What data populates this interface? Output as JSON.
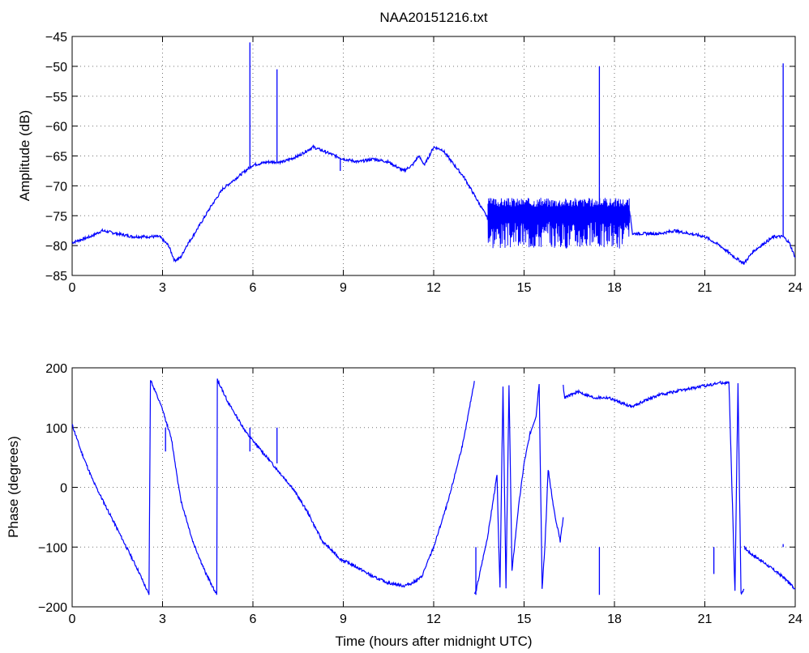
{
  "title": "NAA20151216.txt",
  "colors": {
    "series": "#0000ff",
    "axes": "#000000",
    "background": "#ffffff"
  },
  "chart_data": [
    {
      "type": "line",
      "ylabel": "Amplitude (dB)",
      "xlabel": "",
      "xlim": [
        0,
        24
      ],
      "ylim": [
        -85,
        -45
      ],
      "xticks": [
        "0",
        "3",
        "6",
        "9",
        "12",
        "15",
        "18",
        "21",
        "24"
      ],
      "yticks": [
        "-85",
        "-80",
        "-75",
        "-70",
        "-65",
        "-60",
        "-55",
        "-50",
        "-45"
      ],
      "grid": true,
      "x": [
        0,
        0.3,
        0.6,
        1.0,
        1.5,
        2.0,
        2.5,
        2.9,
        3.2,
        3.4,
        3.6,
        3.8,
        4.0,
        4.3,
        4.6,
        5.0,
        5.5,
        6.0,
        6.5,
        7.0,
        7.5,
        8.0,
        8.5,
        9.0,
        9.5,
        10.0,
        10.5,
        11.0,
        11.3,
        11.5,
        11.7,
        12.0,
        12.3,
        12.6,
        13.0,
        13.4,
        13.8,
        14.5,
        15.0,
        15.5,
        16.0,
        16.5,
        17.0,
        17.5,
        18.0,
        18.5,
        18.6,
        19.0,
        19.5,
        20.0,
        20.5,
        21.0,
        21.5,
        22.0,
        22.3,
        22.6,
        23.0,
        23.3,
        23.6,
        23.8,
        24.0
      ],
      "y": [
        -79.5,
        -79.0,
        -78.5,
        -77.5,
        -78.0,
        -78.5,
        -78.5,
        -78.5,
        -80.0,
        -82.5,
        -82.0,
        -80.0,
        -78.5,
        -76.0,
        -73.5,
        -70.5,
        -68.5,
        -66.5,
        -66.0,
        -66.0,
        -65.0,
        -63.5,
        -64.5,
        -65.5,
        -66.0,
        -65.5,
        -66.0,
        -67.5,
        -66.5,
        -65.0,
        -66.5,
        -63.5,
        -64.0,
        -66.0,
        -68.5,
        -72.0,
        -75.5,
        -75.5,
        -75.0,
        -75.0,
        -74.5,
        -74.5,
        -74.0,
        -74.0,
        -74.0,
        -74.0,
        -78.0,
        -78.0,
        -78.0,
        -77.5,
        -78.0,
        -78.5,
        -80.0,
        -82.0,
        -83.0,
        -81.0,
        -79.5,
        -78.5,
        -78.5,
        -79.5,
        -82.0
      ],
      "spikes": [
        {
          "x": 5.9,
          "y": -46.0
        },
        {
          "x": 6.8,
          "y": -50.5
        },
        {
          "x": 8.9,
          "y": -67.5
        },
        {
          "x": 17.5,
          "y": -50.0
        },
        {
          "x": 23.6,
          "y": -49.5
        }
      ],
      "noise_band": {
        "x_from": 13.8,
        "x_to": 18.5,
        "y_top": -73.5,
        "y_bottom": -80.5
      }
    },
    {
      "type": "line",
      "ylabel": "Phase (degrees)",
      "xlabel": "Time (hours after midnight UTC)",
      "xlim": [
        0,
        24
      ],
      "ylim": [
        -200,
        200
      ],
      "xticks": [
        "0",
        "3",
        "6",
        "9",
        "12",
        "15",
        "18",
        "21",
        "24"
      ],
      "yticks": [
        "-200",
        "-100",
        "0",
        "100",
        "200"
      ],
      "grid": true,
      "segments": [
        {
          "x": [
            0.0,
            0.3,
            0.7,
            1.2,
            1.7,
            2.2,
            2.55
          ],
          "y": [
            105,
            60,
            10,
            -40,
            -90,
            -140,
            -180
          ]
        },
        {
          "x": [
            2.55,
            2.6,
            3.0,
            3.3,
            3.6,
            4.0,
            4.4,
            4.8
          ],
          "y": [
            -180,
            180,
            130,
            80,
            -20,
            -90,
            -140,
            -180
          ]
        },
        {
          "x": [
            4.8,
            4.82,
            5.2,
            5.8,
            6.3,
            6.8,
            7.3,
            7.8,
            8.3,
            8.9,
            9.5,
            10.0,
            10.5,
            11.0,
            11.3,
            11.6,
            12.0,
            12.5,
            13.0,
            13.35
          ],
          "y": [
            -180,
            180,
            140,
            90,
            60,
            30,
            0,
            -40,
            -90,
            -120,
            -135,
            -150,
            -160,
            -165,
            -160,
            -150,
            -100,
            -20,
            80,
            178
          ]
        },
        {
          "x": [
            13.35,
            13.4,
            13.8,
            14.1,
            14.2,
            14.3,
            14.4,
            14.5,
            14.6,
            14.8,
            15.0,
            15.2,
            15.4,
            15.5,
            15.6
          ],
          "y": [
            -178,
            -175,
            -80,
            20,
            -170,
            170,
            -170,
            170,
            -140,
            -40,
            40,
            90,
            120,
            175,
            -170
          ]
        },
        {
          "x": [
            15.6,
            15.7,
            15.8,
            16.0,
            16.2,
            16.3
          ],
          "y": [
            -170,
            -90,
            30,
            -40,
            -90,
            -50
          ]
        },
        {
          "x": [
            16.3,
            16.35,
            16.8,
            17.3,
            17.8,
            18.3,
            18.6,
            19.0,
            19.5,
            20.0,
            20.5,
            21.0,
            21.5,
            21.8,
            22.0,
            22.1,
            22.2,
            22.3
          ],
          "y": [
            170,
            150,
            160,
            150,
            150,
            140,
            135,
            145,
            155,
            160,
            165,
            170,
            175,
            175,
            -175,
            175,
            -178,
            -170
          ]
        },
        {
          "x": [
            22.3,
            22.5,
            22.8,
            23.2,
            23.6,
            24.0
          ],
          "y": [
            -100,
            -110,
            -120,
            -135,
            -150,
            -170
          ]
        }
      ],
      "spikes": [
        {
          "x": 3.1,
          "y": 60
        },
        {
          "x": 5.9,
          "y": 60
        },
        {
          "x": 6.8,
          "y": 40
        },
        {
          "x": 13.4,
          "y": -180
        },
        {
          "x": 17.5,
          "y": -180
        },
        {
          "x": 21.3,
          "y": -145
        },
        {
          "x": 23.6,
          "y": -95
        }
      ]
    }
  ]
}
